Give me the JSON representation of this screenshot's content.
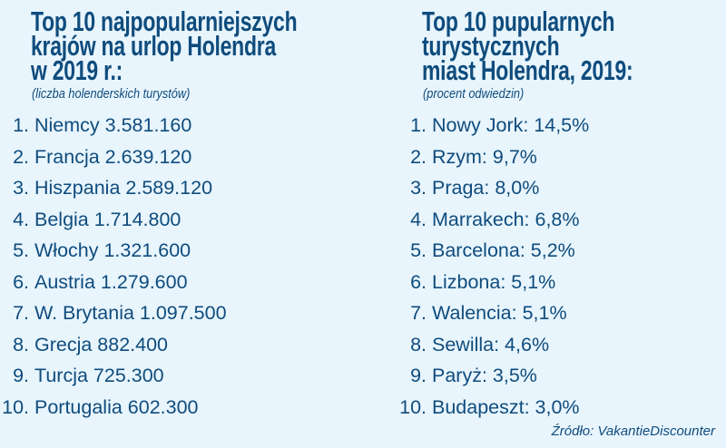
{
  "left": {
    "title_lines": [
      "Top 10 najpopularniejszych",
      "krajów na urlop Holendra",
      "w 2019 r.:"
    ],
    "subtitle": "(liczba holenderskich turystów)",
    "items": [
      {
        "rank": "1.",
        "text": "Niemcy 3.581.160"
      },
      {
        "rank": "2.",
        "text": "Francja 2.639.120"
      },
      {
        "rank": "3.",
        "text": "Hiszpania 2.589.120"
      },
      {
        "rank": "4.",
        "text": "Belgia 1.714.800"
      },
      {
        "rank": "5.",
        "text": "Włochy 1.321.600"
      },
      {
        "rank": "6.",
        "text": "Austria 1.279.600"
      },
      {
        "rank": "7.",
        "text": "W. Brytania 1.097.500"
      },
      {
        "rank": "8.",
        "text": "Grecja 882.400"
      },
      {
        "rank": "9.",
        "text": "Turcja 725.300"
      },
      {
        "rank": "10.",
        "text": "Portugalia 602.300"
      }
    ]
  },
  "right": {
    "title_lines": [
      "Top 10 pupularnych",
      "turystycznych",
      "miast Holendra, 2019:"
    ],
    "subtitle": "(procent odwiedzin)",
    "items": [
      {
        "rank": "1.",
        "text": "Nowy  Jork: 14,5%"
      },
      {
        "rank": "2.",
        "text": "Rzym: 9,7%"
      },
      {
        "rank": "3.",
        "text": "Praga: 8,0%"
      },
      {
        "rank": "4.",
        "text": "Marrakech: 6,8%"
      },
      {
        "rank": "5.",
        "text": "Barcelona: 5,2%"
      },
      {
        "rank": "6.",
        "text": "Lizbona: 5,1%"
      },
      {
        "rank": "7.",
        "text": "Walencia: 5,1%"
      },
      {
        "rank": "8.",
        "text": "Sewilla: 4,6%"
      },
      {
        "rank": "9.",
        "text": "Paryż: 3,5%"
      },
      {
        "rank": "10.",
        "text": "Budapeszt: 3,0%"
      }
    ]
  },
  "source": "Źródło: VakantieDiscounter",
  "colors": {
    "background": "#e8f5fd",
    "text": "#0f4c7d"
  }
}
